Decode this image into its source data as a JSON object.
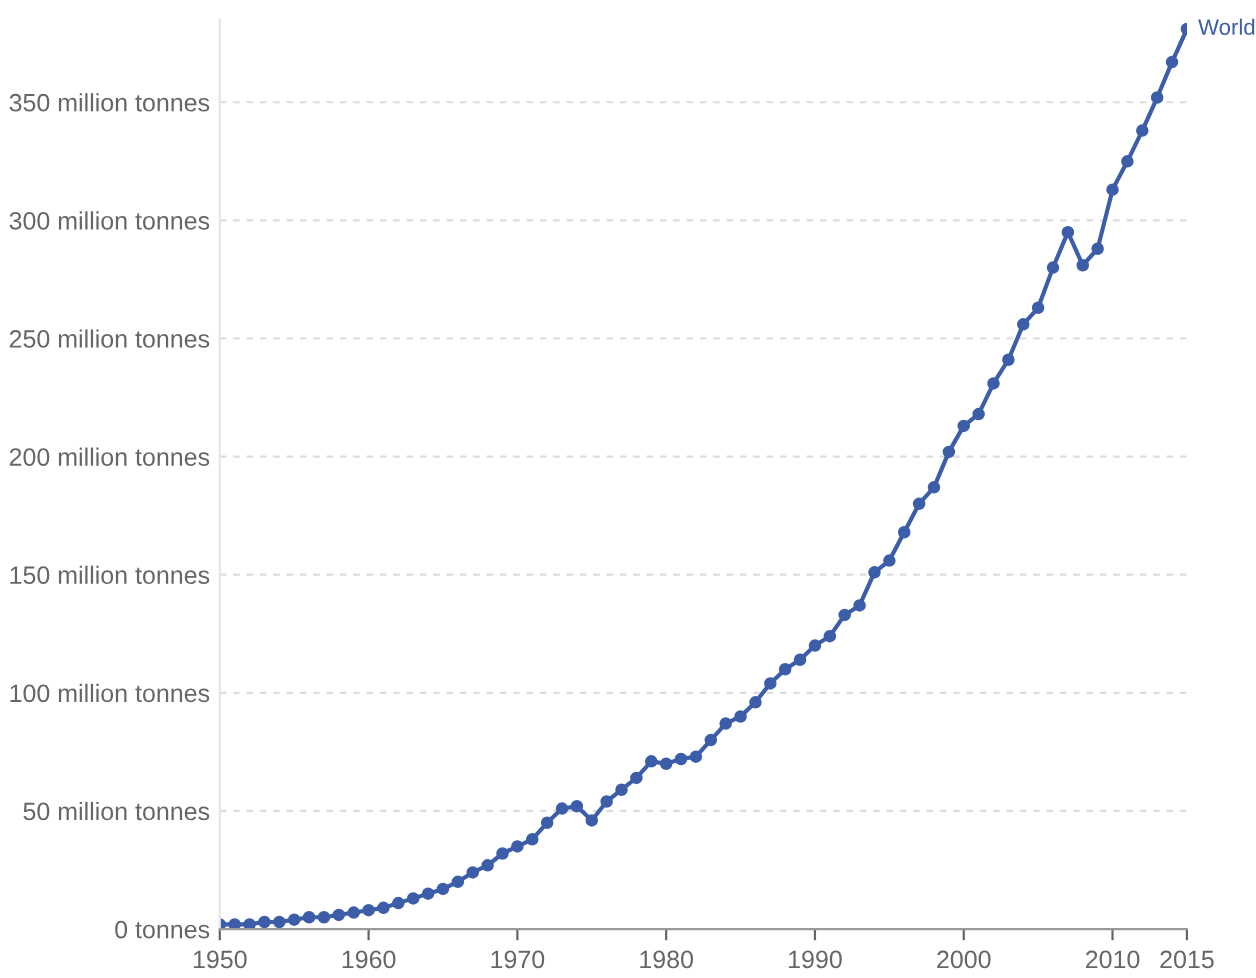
{
  "chart_data": {
    "type": "line",
    "x": [
      1950,
      1951,
      1952,
      1953,
      1954,
      1955,
      1956,
      1957,
      1958,
      1959,
      1960,
      1961,
      1962,
      1963,
      1964,
      1965,
      1966,
      1967,
      1968,
      1969,
      1970,
      1971,
      1972,
      1973,
      1974,
      1975,
      1976,
      1977,
      1978,
      1979,
      1980,
      1981,
      1982,
      1983,
      1984,
      1985,
      1986,
      1987,
      1988,
      1989,
      1990,
      1991,
      1992,
      1993,
      1994,
      1995,
      1996,
      1997,
      1998,
      1999,
      2000,
      2001,
      2002,
      2003,
      2004,
      2005,
      2006,
      2007,
      2008,
      2009,
      2010,
      2011,
      2012,
      2013,
      2014,
      2015
    ],
    "series": [
      {
        "name": "World",
        "color": "#3c5da8",
        "values": [
          2,
          2,
          2,
          3,
          3,
          4,
          5,
          5,
          6,
          7,
          8,
          9,
          11,
          13,
          15,
          17,
          20,
          24,
          27,
          32,
          35,
          38,
          45,
          51,
          52,
          46,
          54,
          59,
          64,
          71,
          70,
          72,
          73,
          80,
          87,
          90,
          96,
          104,
          110,
          114,
          120,
          124,
          133,
          137,
          151,
          156,
          168,
          180,
          187,
          202,
          213,
          218,
          231,
          241,
          256,
          263,
          280,
          295,
          281,
          288,
          313,
          325,
          338,
          352,
          367,
          381
        ]
      }
    ],
    "xlim": [
      1950,
      2015
    ],
    "xticks": [
      1950,
      1960,
      1970,
      1980,
      1990,
      2000,
      2010,
      2015
    ],
    "ylim": [
      0,
      385
    ],
    "yticks": [
      {
        "value": 0,
        "label": "0 tonnes"
      },
      {
        "value": 50,
        "label": "50 million tonnes"
      },
      {
        "value": 100,
        "label": "100 million tonnes"
      },
      {
        "value": 150,
        "label": "150 million tonnes"
      },
      {
        "value": 200,
        "label": "200 million tonnes"
      },
      {
        "value": 250,
        "label": "250 million tonnes"
      },
      {
        "value": 300,
        "label": "300 million tonnes"
      },
      {
        "value": 350,
        "label": "350 million tonnes"
      }
    ],
    "grid": "y",
    "marker": "circle",
    "line_style": "solid"
  }
}
